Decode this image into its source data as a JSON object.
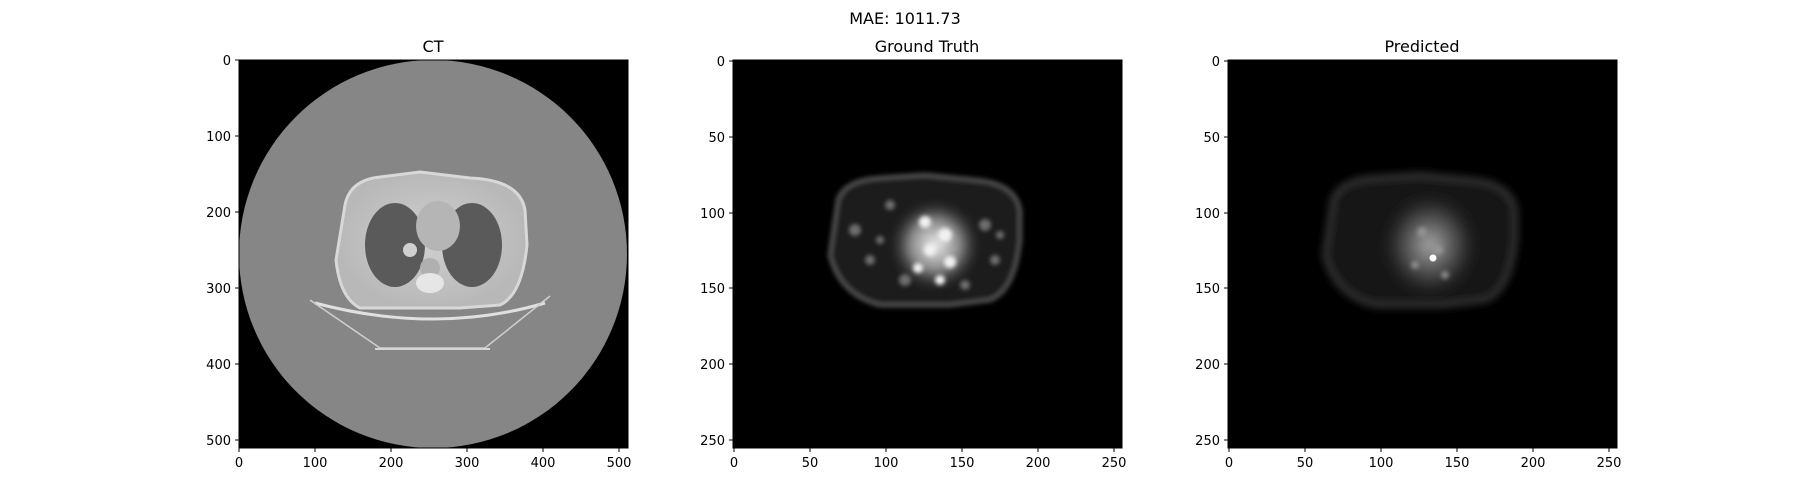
{
  "figure": {
    "suptitle": "MAE: 1011.73"
  },
  "panels": [
    {
      "title": "CT",
      "image": "ct-slice",
      "x_ticks": [
        "0",
        "100",
        "200",
        "300",
        "400",
        "500"
      ],
      "y_ticks": [
        "0",
        "100",
        "200",
        "300",
        "400",
        "500"
      ]
    },
    {
      "title": "Ground Truth",
      "image": "pet-ground-truth-slice",
      "x_ticks": [
        "0",
        "50",
        "100",
        "150",
        "200",
        "250"
      ],
      "y_ticks": [
        "0",
        "50",
        "100",
        "150",
        "200",
        "250"
      ]
    },
    {
      "title": "Predicted",
      "image": "pet-predicted-slice",
      "x_ticks": [
        "0",
        "50",
        "100",
        "150",
        "200",
        "250"
      ],
      "y_ticks": [
        "0",
        "50",
        "100",
        "150",
        "200",
        "250"
      ]
    }
  ]
}
